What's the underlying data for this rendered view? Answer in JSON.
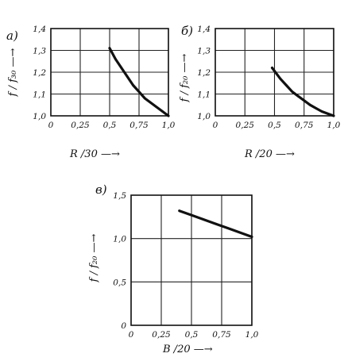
{
  "chart_data": [
    {
      "type": "line",
      "panel_label": "a)",
      "xlabel": "R /30 —→",
      "ylabel": "f / f₃₀ —→",
      "xlim": [
        0,
        1.0
      ],
      "ylim": [
        1.0,
        1.4
      ],
      "x_ticks": [
        "0",
        "0,25",
        "0,5",
        "0,75",
        "1,0"
      ],
      "y_ticks": [
        "1,0",
        "1,1",
        "1,2",
        "1,3",
        "1,4"
      ],
      "grid": true,
      "series": [
        {
          "x": [
            0.5,
            0.55,
            0.6,
            0.65,
            0.7,
            0.75,
            0.8,
            0.85,
            0.9,
            0.95,
            1.0
          ],
          "y": [
            1.31,
            1.26,
            1.22,
            1.18,
            1.14,
            1.11,
            1.08,
            1.06,
            1.04,
            1.02,
            1.0
          ]
        }
      ]
    },
    {
      "type": "line",
      "panel_label": "б)",
      "xlabel": "R /20 —→",
      "ylabel": "f / f₂₀ —→",
      "xlim": [
        0,
        1.0
      ],
      "ylim": [
        1.0,
        1.4
      ],
      "x_ticks": [
        "0",
        "0,25",
        "0,5",
        "0,75",
        "1,0"
      ],
      "y_ticks": [
        "1,0",
        "1,1",
        "1,2",
        "1,3",
        "1,4"
      ],
      "grid": true,
      "series": [
        {
          "x": [
            0.48,
            0.55,
            0.6,
            0.65,
            0.7,
            0.75,
            0.8,
            0.85,
            0.9,
            0.95,
            1.0
          ],
          "y": [
            1.22,
            1.17,
            1.14,
            1.11,
            1.09,
            1.07,
            1.05,
            1.035,
            1.02,
            1.01,
            1.0
          ]
        }
      ]
    },
    {
      "type": "line",
      "panel_label": "в)",
      "xlabel": "B /20 —→",
      "ylabel": "f / f₂₀ —→",
      "xlim": [
        0,
        1.0
      ],
      "ylim": [
        0,
        1.5
      ],
      "x_ticks": [
        "0",
        "0,25",
        "0,5",
        "0,75",
        "1,0"
      ],
      "y_ticks": [
        "0",
        "0,5",
        "1,0",
        "1,5"
      ],
      "grid": true,
      "series": [
        {
          "x": [
            0.4,
            0.5,
            0.6,
            0.7,
            0.8,
            0.9,
            1.0
          ],
          "y": [
            1.32,
            1.27,
            1.22,
            1.17,
            1.12,
            1.07,
            1.02
          ]
        }
      ]
    }
  ]
}
